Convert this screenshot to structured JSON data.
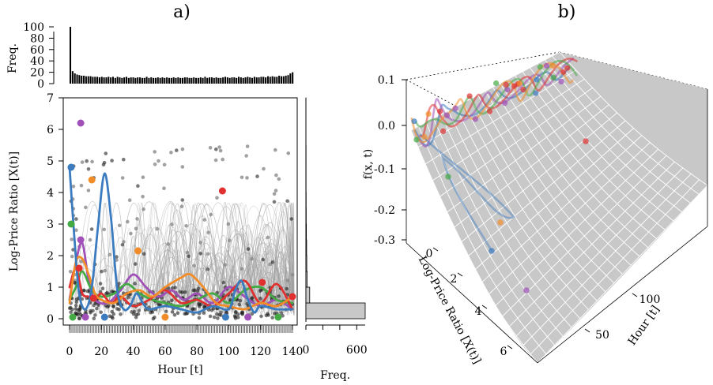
{
  "chart_data": [
    {
      "panel": "a)",
      "type": "line",
      "xlabel": "Hour [t]",
      "ylabel": "Log-Price Ratio [X(t)]",
      "xlim": [
        0,
        144
      ],
      "ylim": [
        0,
        7
      ],
      "xticks": [
        "0",
        "20",
        "40",
        "60",
        "80",
        "100",
        "120",
        "140"
      ],
      "yticks": [
        "0",
        "1",
        "2",
        "3",
        "4",
        "5",
        "6",
        "7"
      ],
      "grid": false,
      "top_histogram": {
        "ylabel": "Freq.",
        "yticks": [
          "0",
          "20",
          "40",
          "60",
          "80",
          "100"
        ],
        "ylim": [
          0,
          100
        ],
        "approx_counts": [
          100,
          22,
          18,
          16,
          15,
          14,
          14,
          13,
          13,
          13,
          12,
          12,
          12,
          11,
          12,
          11,
          11,
          12,
          11,
          12,
          10,
          12,
          11,
          10,
          11,
          12,
          10,
          11,
          11,
          10,
          11,
          11,
          10,
          10,
          12,
          10,
          11,
          10,
          10,
          11,
          10,
          11,
          10,
          11,
          10,
          10,
          11,
          10,
          11,
          10,
          10,
          11,
          11,
          10,
          10,
          11,
          10,
          10,
          11,
          10,
          12,
          10,
          11,
          11,
          10,
          11,
          10,
          10,
          11,
          12,
          11,
          10,
          11,
          11,
          10,
          12,
          11,
          10,
          11,
          12,
          11,
          10,
          12,
          11,
          11,
          12,
          12,
          11,
          13,
          12,
          13,
          12,
          12,
          14,
          13,
          13,
          14,
          15,
          18,
          20
        ]
      },
      "right_histogram": {
        "xlabel": "Freq.",
        "xticks": [
          "0",
          "200",
          "400",
          "600"
        ],
        "bin_edges": [
          0,
          0.5,
          1,
          1.5,
          2,
          2.5,
          3,
          3.5,
          4,
          4.5,
          5,
          5.5,
          6,
          6.5,
          7
        ],
        "counts": [
          700,
          45,
          15,
          10,
          8,
          6,
          4,
          3,
          2,
          2,
          2,
          1,
          1,
          1
        ]
      },
      "highlighted_series": [
        {
          "color": "#3b7bbf",
          "x": [
            0,
            3,
            6,
            10,
            14,
            18,
            22,
            26,
            30,
            34,
            38,
            42,
            46,
            50,
            60,
            70,
            80,
            90,
            100,
            104,
            108,
            112,
            116,
            120,
            130,
            140
          ],
          "y": [
            4.8,
            2.6,
            0.8,
            0.3,
            1.0,
            3.0,
            4.6,
            3.2,
            0.9,
            0.3,
            0.4,
            0.8,
            0.5,
            0.3,
            0.4,
            0.3,
            0.2,
            0.4,
            0.3,
            0.9,
            1.2,
            0.6,
            0.2,
            0.4,
            0.3,
            0.3
          ]
        },
        {
          "color": "#e03030",
          "x": [
            0,
            4,
            8,
            12,
            16,
            20,
            26,
            32,
            40,
            50,
            60,
            70,
            80,
            90,
            100,
            110,
            120,
            130,
            140
          ],
          "y": [
            1.0,
            1.6,
            0.8,
            0.7,
            0.6,
            0.8,
            0.5,
            0.7,
            0.4,
            0.6,
            0.9,
            0.5,
            0.6,
            0.4,
            0.8,
            1.2,
            0.5,
            1.1,
            0.3
          ]
        },
        {
          "color": "#f28c28",
          "x": [
            0,
            4,
            8,
            12,
            16,
            20,
            28,
            36,
            44,
            52,
            60,
            70,
            76,
            84,
            92,
            100,
            110,
            120,
            130,
            140
          ],
          "y": [
            0.5,
            1.8,
            1.9,
            1.4,
            0.8,
            0.6,
            0.5,
            0.8,
            0.9,
            0.7,
            1.0,
            1.3,
            1.4,
            1.0,
            0.5,
            0.4,
            0.3,
            0.5,
            0.4,
            0.7
          ]
        },
        {
          "color": "#44aa44",
          "x": [
            0,
            4,
            8,
            14,
            20,
            28,
            36,
            44,
            52,
            60,
            70,
            80,
            90,
            100,
            110,
            120,
            130,
            140
          ],
          "y": [
            0.6,
            1.0,
            1.5,
            0.9,
            0.7,
            0.8,
            1.1,
            0.8,
            0.6,
            0.5,
            0.4,
            0.6,
            0.8,
            0.5,
            0.9,
            1.0,
            0.6,
            0.5
          ]
        },
        {
          "color": "#a050b8",
          "x": [
            0,
            4,
            8,
            12,
            16,
            24,
            32,
            40,
            48,
            56,
            64,
            72,
            80,
            90,
            100,
            110,
            120,
            130,
            140
          ],
          "y": [
            0.6,
            1.8,
            2.4,
            1.2,
            0.6,
            0.5,
            0.9,
            1.4,
            1.0,
            0.7,
            0.9,
            0.6,
            0.8,
            0.5,
            1.0,
            0.7,
            0.4,
            0.6,
            0.3
          ]
        }
      ],
      "highlighted_points": [
        {
          "color": "#a050b8",
          "x": 7,
          "y": 6.2
        },
        {
          "color": "#3b7bbf",
          "x": 1,
          "y": 4.8
        },
        {
          "color": "#f28c28",
          "x": 14,
          "y": 4.4
        },
        {
          "color": "#e03030",
          "x": 96,
          "y": 4.05
        },
        {
          "color": "#44aa44",
          "x": 1,
          "y": 3.0
        },
        {
          "color": "#f28c28",
          "x": 43,
          "y": 2.15
        },
        {
          "color": "#a050b8",
          "x": 7,
          "y": 2.5
        },
        {
          "color": "#e03030",
          "x": 6,
          "y": 1.6
        },
        {
          "color": "#e03030",
          "x": 15,
          "y": 0.65
        },
        {
          "color": "#e03030",
          "x": 121,
          "y": 1.15
        },
        {
          "color": "#e03030",
          "x": 140,
          "y": 0.7
        },
        {
          "color": "#44aa44",
          "x": 2,
          "y": 0.05
        },
        {
          "color": "#3b7bbf",
          "x": 22,
          "y": 0.05
        },
        {
          "color": "#a050b8",
          "x": 10,
          "y": 0.05
        },
        {
          "color": "#f28c28",
          "x": 60,
          "y": 0.05
        },
        {
          "color": "#3b7bbf",
          "x": 98,
          "y": 0.05
        },
        {
          "color": "#a050b8",
          "x": 112,
          "y": 0.05
        },
        {
          "color": "#44aa44",
          "x": 131,
          "y": 0.05
        }
      ]
    },
    {
      "panel": "b)",
      "type": "surface",
      "zlabel": "f(x, t)",
      "xlabel": "Log-Price Ratio [X(t)]",
      "ylabel": "Hour [t]",
      "zticks": [
        "0.1",
        "0.0",
        "-0.1",
        "-0.2",
        "-0.3"
      ],
      "xticks": [
        "0",
        "2",
        "4",
        "6"
      ],
      "yticks": [
        "50",
        "100"
      ],
      "surface_color": "#c8c8c8",
      "mesh_color": "#ffffff"
    }
  ]
}
